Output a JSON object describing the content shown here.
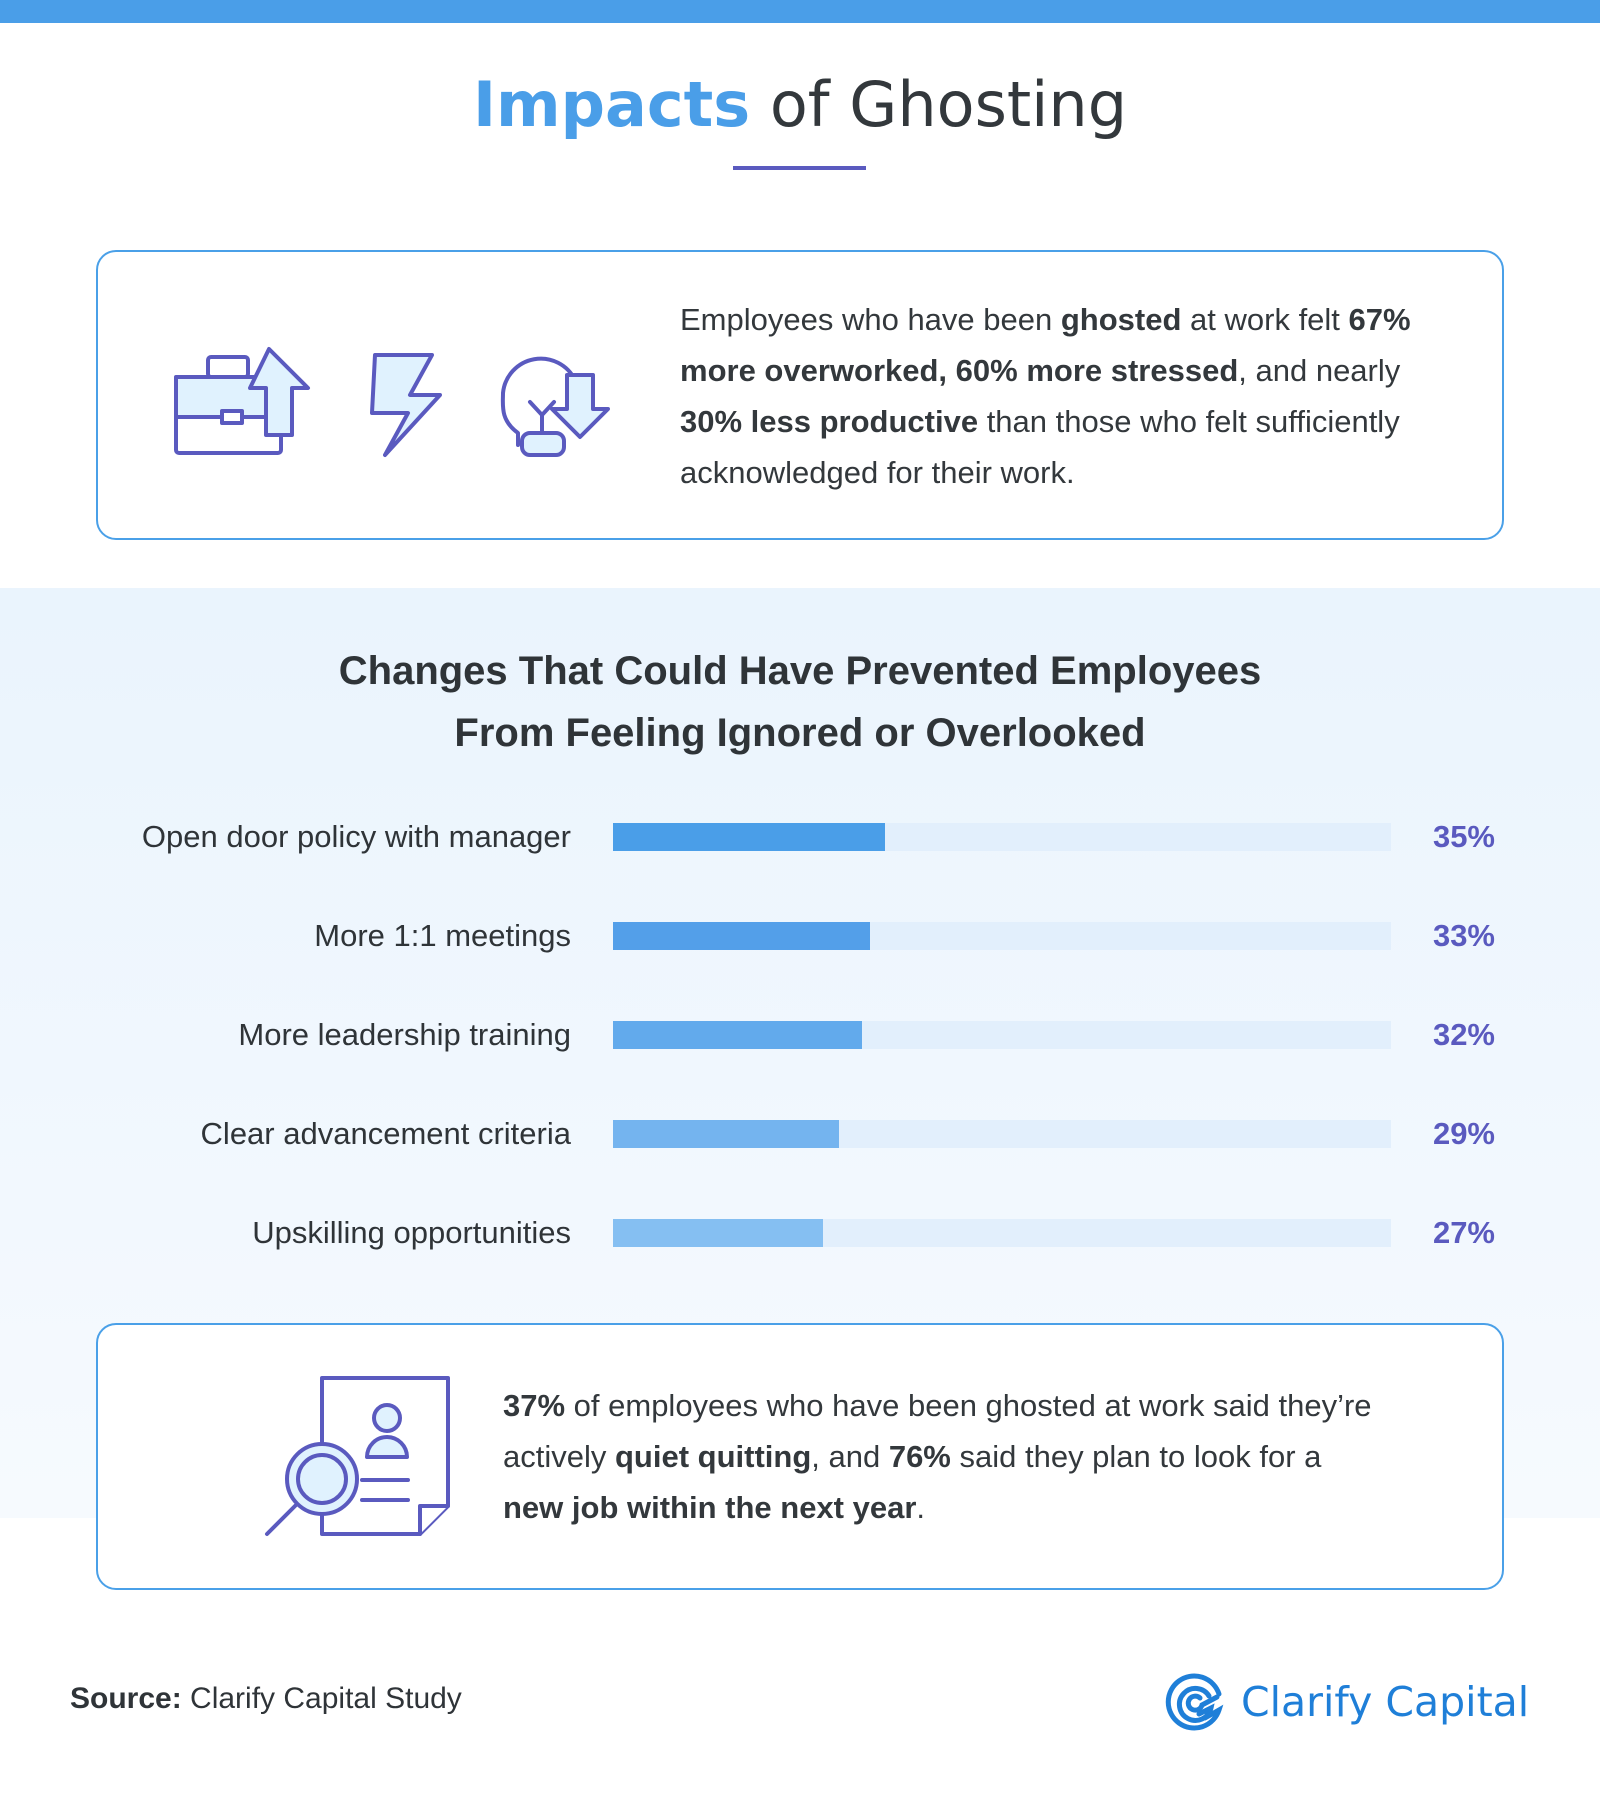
{
  "header": {
    "title_highlight": "Impacts",
    "title_rest": " of Ghosting"
  },
  "stat1": {
    "p1": "Employees who have been ",
    "b1": "ghosted",
    "p2": " at work felt ",
    "b2": "67% more overworked, 60% more stressed",
    "p3": ", and nearly ",
    "b3": "30% less productive",
    "p4": " than those who felt sufficiently acknowledged for their work.",
    "icons": [
      "briefcase-arrow-up-icon",
      "lightning-icon",
      "lightbulb-arrow-down-icon"
    ]
  },
  "chart_data": {
    "type": "bar",
    "orientation": "horizontal",
    "title": "Changes That Could Have Prevented Employees From Feeling Ignored or Overlooked",
    "title_line1": "Changes That Could Have Prevented Employees",
    "title_line2": "From Feeling Ignored or Overlooked",
    "categories": [
      "Open door policy with manager",
      "More 1:1 meetings",
      "More leadership training",
      "Clear advancement criteria",
      "Upskilling opportunities"
    ],
    "values": [
      35,
      33,
      32,
      29,
      27
    ],
    "labels": [
      "35%",
      "33%",
      "32%",
      "29%",
      "27%"
    ],
    "xlim": [
      0,
      100
    ],
    "colors": [
      "#4a9ee8",
      "#539fe9",
      "#62aaec",
      "#74b4ef",
      "#85bff2"
    ],
    "track_color": "#e2effc",
    "label_color": "#5a5abf"
  },
  "stat2": {
    "b1": "37%",
    "p1": " of employees who have been ghosted at work said they’re actively ",
    "b2": "quiet quitting",
    "p2": ", and ",
    "b3": "76%",
    "p3": " said they plan to look for a ",
    "b4": "new job within the next year",
    "p4": ".",
    "icon": "resume-search-icon"
  },
  "footer": {
    "source_label": "Source:",
    "source_text": " Clarify Capital Study",
    "logo_text": "Clarify Capital"
  },
  "colors": {
    "accent": "#4a9ee8",
    "indigo": "#5a5abf"
  }
}
